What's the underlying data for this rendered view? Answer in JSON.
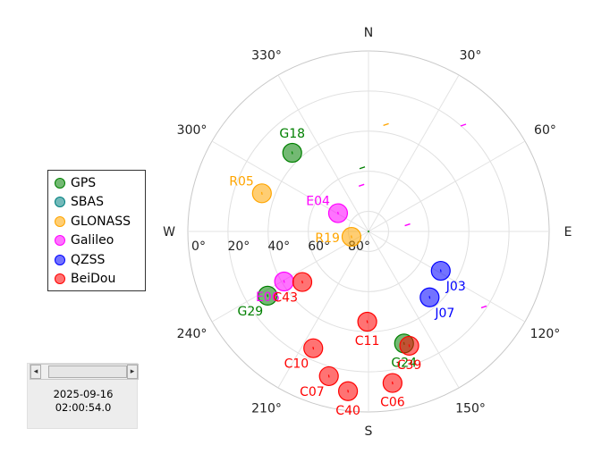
{
  "skyplot": {
    "direction_labels": [
      {
        "key": "n",
        "text": "N",
        "az": 0
      },
      {
        "key": "e",
        "text": "E",
        "az": 90
      },
      {
        "key": "s",
        "text": "S",
        "az": 180
      },
      {
        "key": "w",
        "text": "W",
        "az": 270
      }
    ],
    "azimuth_labels": [
      {
        "text": "30°",
        "az": 30
      },
      {
        "text": "60°",
        "az": 60
      },
      {
        "text": "120°",
        "az": 120
      },
      {
        "text": "150°",
        "az": 150
      },
      {
        "text": "210°",
        "az": 210
      },
      {
        "text": "240°",
        "az": 240
      },
      {
        "text": "300°",
        "az": 300
      },
      {
        "text": "330°",
        "az": 330
      }
    ],
    "elevation_labels": [
      {
        "text": "0°",
        "elev": 0
      },
      {
        "text": "20°",
        "elev": 20
      },
      {
        "text": "40°",
        "elev": 40
      },
      {
        "text": "60°",
        "elev": 60
      },
      {
        "text": "80°",
        "elev": 80
      }
    ],
    "colors": {
      "GPS": "#008000",
      "SBAS": "#008080",
      "GLONASS": "#FFA500",
      "Galileo": "#FF00FF",
      "QZSS": "#0000FF",
      "BeiDou": "#FF0000"
    },
    "satellites": [
      {
        "id": "G18",
        "system": "GPS",
        "az": 315.9,
        "elev": 35.4,
        "label_pos": "top"
      },
      {
        "id": "G29",
        "system": "GPS",
        "az": 237.5,
        "elev": 30.4,
        "label_pos": "bottom-left"
      },
      {
        "id": "G24",
        "system": "GPS",
        "az": 162.4,
        "elev": 31.4,
        "label_pos": "bottom"
      },
      {
        "id": "R05",
        "system": "GLONASS",
        "az": 289.7,
        "elev": 33.6,
        "label_pos": "top-left"
      },
      {
        "id": "R19",
        "system": "GLONASS",
        "az": 252.4,
        "elev": 81.1,
        "label_pos": "left"
      },
      {
        "id": "E04",
        "system": "Galileo",
        "az": 301.0,
        "elev": 72.3,
        "label_pos": "top-left"
      },
      {
        "id": "E06",
        "system": "Galileo",
        "az": 239.3,
        "elev": 41.1,
        "label_pos": "bottom-left"
      },
      {
        "id": "J03",
        "system": "QZSS",
        "az": 118.6,
        "elev": 49.0,
        "label_pos": "bottom-right"
      },
      {
        "id": "J07",
        "system": "QZSS",
        "az": 137.2,
        "elev": 45.2,
        "label_pos": "bottom-right"
      },
      {
        "id": "C43",
        "system": "BeiDou",
        "az": 232.6,
        "elev": 48.5,
        "label_pos": "bottom-left"
      },
      {
        "id": "C11",
        "system": "BeiDou",
        "az": 180.8,
        "elev": 45.0,
        "label_pos": "bottom"
      },
      {
        "id": "C39",
        "system": "BeiDou",
        "az": 160.4,
        "elev": 29.5,
        "label_pos": "bottom"
      },
      {
        "id": "C10",
        "system": "BeiDou",
        "az": 205.3,
        "elev": 25.6,
        "label_pos": "bottom-left"
      },
      {
        "id": "C07",
        "system": "BeiDou",
        "az": 195.3,
        "elev": 15.2,
        "label_pos": "bottom-left"
      },
      {
        "id": "C40",
        "system": "BeiDou",
        "az": 187.3,
        "elev": 9.7,
        "label_pos": "bottom"
      },
      {
        "id": "C06",
        "system": "BeiDou",
        "az": 171.0,
        "elev": 13.5,
        "label_pos": "bottom"
      }
    ],
    "track_marks": [
      {
        "system": "GLONASS",
        "az": 9.3,
        "elev": 36.0
      },
      {
        "system": "Galileo",
        "az": 41.7,
        "elev": 19.0
      },
      {
        "system": "GPS",
        "az": 354.4,
        "elev": 58.1
      },
      {
        "system": "Galileo",
        "az": 351.4,
        "elev": 66.7
      },
      {
        "system": "Galileo",
        "az": 80.3,
        "elev": 70.3
      },
      {
        "system": "Galileo",
        "az": 123.2,
        "elev": 21.3
      }
    ]
  },
  "legend": {
    "items": [
      {
        "label": "GPS",
        "system": "GPS"
      },
      {
        "label": "SBAS",
        "system": "SBAS"
      },
      {
        "label": "GLONASS",
        "system": "GLONASS"
      },
      {
        "label": "Galileo",
        "system": "Galileo"
      },
      {
        "label": "QZSS",
        "system": "QZSS"
      },
      {
        "label": "BeiDou",
        "system": "BeiDou"
      }
    ]
  },
  "time_panel": {
    "date": "2025-09-16",
    "time": "02:00:54.0",
    "left_arrow": "◂",
    "right_arrow": "▸"
  }
}
